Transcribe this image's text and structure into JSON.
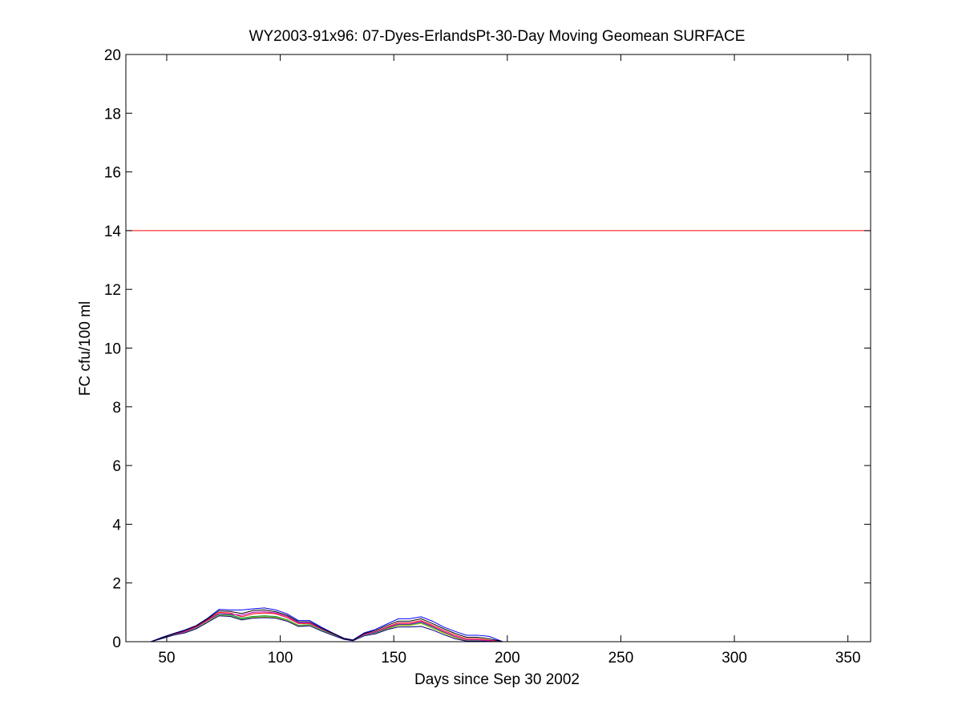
{
  "chart_data": {
    "type": "line",
    "title": "WY2003-91x96: 07-Dyes-ErlandsPt-30-Day Moving Geomean SURFACE",
    "xlabel": "Days since Sep 30 2002",
    "ylabel": "FC cfu/100 ml",
    "xlim": [
      32,
      360
    ],
    "ylim": [
      0,
      20
    ],
    "xticks": [
      50,
      100,
      150,
      200,
      250,
      300,
      350
    ],
    "yticks": [
      0,
      2,
      4,
      6,
      8,
      10,
      12,
      14,
      16,
      18,
      20
    ],
    "grid": false,
    "reference_line": {
      "y": 14,
      "color": "#ff0000"
    },
    "x": [
      43,
      48,
      53,
      58,
      63,
      68,
      73,
      78,
      83,
      88,
      93,
      98,
      103,
      108,
      113,
      118,
      123,
      128,
      132,
      137,
      142,
      147,
      152,
      157,
      162,
      167,
      172,
      177,
      182,
      187,
      192,
      198
    ],
    "series": [
      {
        "color": "#0000ff",
        "values": [
          0.0,
          0.15,
          0.28,
          0.4,
          0.55,
          0.8,
          1.1,
          1.08,
          1.08,
          1.12,
          1.15,
          1.08,
          0.95,
          0.72,
          0.72,
          0.5,
          0.3,
          0.12,
          0.06,
          0.3,
          0.42,
          0.6,
          0.78,
          0.78,
          0.85,
          0.7,
          0.5,
          0.35,
          0.22,
          0.22,
          0.18,
          0.0
        ]
      },
      {
        "color": "#008000",
        "values": [
          0.0,
          0.12,
          0.24,
          0.32,
          0.48,
          0.7,
          0.95,
          0.92,
          0.8,
          0.86,
          0.88,
          0.86,
          0.75,
          0.56,
          0.58,
          0.4,
          0.25,
          0.09,
          0.05,
          0.22,
          0.3,
          0.45,
          0.58,
          0.58,
          0.66,
          0.5,
          0.32,
          0.16,
          0.05,
          0.05,
          0.02,
          0.0
        ]
      },
      {
        "color": "#ff0000",
        "values": [
          0.0,
          0.13,
          0.26,
          0.35,
          0.52,
          0.75,
          1.0,
          0.98,
          0.85,
          0.95,
          0.98,
          0.95,
          0.82,
          0.62,
          0.62,
          0.44,
          0.27,
          0.1,
          0.05,
          0.25,
          0.34,
          0.5,
          0.64,
          0.64,
          0.72,
          0.56,
          0.38,
          0.22,
          0.1,
          0.1,
          0.05,
          0.0
        ]
      },
      {
        "color": "#00bfbf",
        "values": [
          0.0,
          0.12,
          0.24,
          0.32,
          0.47,
          0.7,
          0.92,
          0.9,
          0.78,
          0.84,
          0.86,
          0.84,
          0.74,
          0.55,
          0.57,
          0.39,
          0.24,
          0.09,
          0.04,
          0.22,
          0.29,
          0.44,
          0.56,
          0.56,
          0.64,
          0.48,
          0.3,
          0.15,
          0.04,
          0.04,
          0.02,
          0.0
        ]
      },
      {
        "color": "#bf00bf",
        "values": [
          0.0,
          0.12,
          0.25,
          0.34,
          0.5,
          0.73,
          0.96,
          0.94,
          0.9,
          1.0,
          1.02,
          0.98,
          0.86,
          0.64,
          0.64,
          0.45,
          0.28,
          0.1,
          0.05,
          0.24,
          0.33,
          0.48,
          0.6,
          0.6,
          0.68,
          0.52,
          0.34,
          0.18,
          0.06,
          0.06,
          0.03,
          0.0
        ]
      },
      {
        "color": "#bfbf00",
        "values": [
          0.0,
          0.11,
          0.23,
          0.31,
          0.46,
          0.69,
          0.9,
          0.88,
          0.76,
          0.83,
          0.85,
          0.83,
          0.73,
          0.54,
          0.56,
          0.38,
          0.23,
          0.08,
          0.04,
          0.21,
          0.28,
          0.43,
          0.55,
          0.55,
          0.62,
          0.46,
          0.29,
          0.14,
          0.03,
          0.03,
          0.01,
          0.0
        ]
      },
      {
        "color": "#000000",
        "values": [
          0.0,
          0.14,
          0.27,
          0.38,
          0.54,
          0.78,
          1.05,
          1.03,
          0.96,
          1.06,
          1.08,
          1.02,
          0.9,
          0.68,
          0.68,
          0.47,
          0.29,
          0.11,
          0.05,
          0.28,
          0.38,
          0.55,
          0.7,
          0.7,
          0.78,
          0.62,
          0.44,
          0.28,
          0.15,
          0.15,
          0.1,
          0.0
        ]
      },
      {
        "color": "#000080",
        "values": [
          0.0,
          0.11,
          0.22,
          0.3,
          0.44,
          0.66,
          0.88,
          0.86,
          0.74,
          0.8,
          0.82,
          0.8,
          0.7,
          0.52,
          0.54,
          0.37,
          0.22,
          0.08,
          0.03,
          0.2,
          0.27,
          0.41,
          0.5,
          0.5,
          0.52,
          0.4,
          0.24,
          0.1,
          0.02,
          0.02,
          0.01,
          0.0
        ]
      }
    ]
  }
}
